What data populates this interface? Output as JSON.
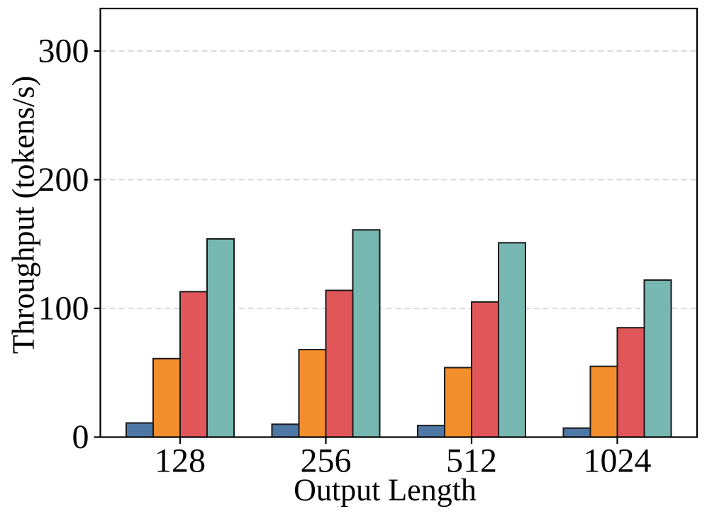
{
  "figure": {
    "background": "#ffffff",
    "axis_color": "#000000",
    "grid_color": "#d0d0d0"
  },
  "chart_data": {
    "type": "bar",
    "title": "",
    "xlabel": "Output Length",
    "ylabel": "Throughput (tokens/s)",
    "categories": [
      "128",
      "256",
      "512",
      "1024"
    ],
    "series": [
      {
        "name": "blue",
        "color": "#4E79A7",
        "values": [
          11,
          10,
          9,
          7
        ]
      },
      {
        "name": "orange",
        "color": "#F28E2B",
        "values": [
          61,
          68,
          54,
          55
        ]
      },
      {
        "name": "red",
        "color": "#E15759",
        "values": [
          113,
          114,
          105,
          85
        ]
      },
      {
        "name": "teal",
        "color": "#76B7B2",
        "values": [
          154,
          161,
          151,
          122
        ]
      }
    ],
    "yticks": [
      0,
      100,
      200,
      300
    ],
    "ylim": [
      0,
      333
    ],
    "grid": "horizontal-dashed",
    "legend": "none",
    "bar_edge_color": "#1a1a1a"
  }
}
